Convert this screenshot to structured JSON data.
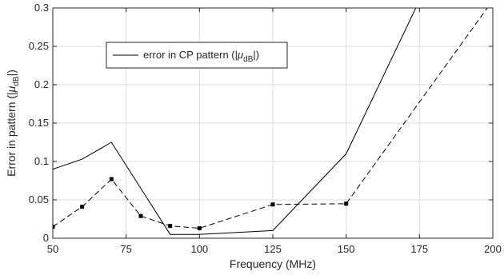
{
  "chart_data": {
    "type": "line",
    "xlabel": "Frequency (MHz)",
    "ylabel": "Error in pattern (|μ_dB|)",
    "ylabel_parts": {
      "prefix": "Error in pattern (|",
      "mu": "μ",
      "sub": "dB",
      "suffix": "|)"
    },
    "xlim": [
      50,
      200
    ],
    "ylim": [
      0,
      0.3
    ],
    "grid": true,
    "xticks": [
      50,
      75,
      100,
      125,
      150,
      175,
      200
    ],
    "xtick_labels": [
      "50",
      "75",
      "100",
      "125",
      "150",
      "175",
      "200"
    ],
    "yticks": [
      0,
      0.05,
      0.1,
      0.15,
      0.2,
      0.25,
      0.3
    ],
    "ytick_labels": [
      "0",
      "0.05",
      "0.1",
      "0.15",
      "0.2",
      "0.25",
      "0.3"
    ],
    "legend": {
      "placement": "upper-left",
      "entries": [
        {
          "prefix": "error in CP pattern (|",
          "mu": "μ",
          "sub": "dB",
          "suffix": "|)"
        }
      ]
    },
    "series": [
      {
        "style": "solid",
        "color": "#000000",
        "markers": false,
        "x": [
          50,
          60,
          70,
          90,
          100,
          125,
          150,
          175
        ],
        "y": [
          0.09,
          0.103,
          0.125,
          0.005,
          0.005,
          0.01,
          0.11,
          0.31
        ]
      },
      {
        "style": "dashed",
        "color": "#000000",
        "markers": true,
        "x": [
          50,
          60,
          70,
          80,
          90,
          100,
          125,
          150,
          200
        ],
        "y": [
          0.015,
          0.041,
          0.077,
          0.029,
          0.016,
          0.013,
          0.044,
          0.045,
          0.31
        ]
      }
    ]
  }
}
